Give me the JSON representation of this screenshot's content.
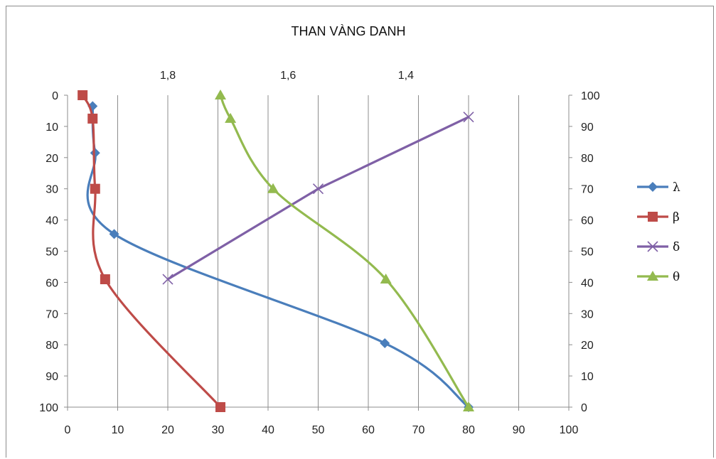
{
  "chart_data": {
    "type": "line",
    "title": "THAN VÀNG DANH",
    "x_axis": {
      "range": [
        0,
        100
      ],
      "ticks": [
        "0",
        "10",
        "20",
        "30",
        "40",
        "50",
        "60",
        "70",
        "80",
        "90",
        "100"
      ]
    },
    "y_left_axis": {
      "range": [
        0,
        100
      ],
      "reversed": true,
      "ticks": [
        "0",
        "10",
        "20",
        "30",
        "40",
        "50",
        "60",
        "70",
        "80",
        "90",
        "100"
      ]
    },
    "y_right_axis": {
      "range": [
        0,
        100
      ],
      "ticks": [
        "0",
        "10",
        "20",
        "30",
        "40",
        "50",
        "60",
        "70",
        "80",
        "90",
        "100"
      ]
    },
    "x_top_axis": {
      "labels": [
        {
          "text": "1,8",
          "at_x": 20
        },
        {
          "text": "1,6",
          "at_x": 44
        },
        {
          "text": "1,4",
          "at_x": 67.5
        }
      ]
    },
    "grid": "vertical",
    "legend_position": "right",
    "series": [
      {
        "name": "λ",
        "color": "#4a7ebb",
        "marker": "diamond",
        "axis": "left-reversed",
        "points": [
          [
            5,
            3.5
          ],
          [
            5.5,
            18.5
          ],
          [
            9.3,
            44.5
          ],
          [
            63.3,
            79.5
          ],
          [
            80,
            100
          ]
        ]
      },
      {
        "name": "β",
        "color": "#be4b48",
        "marker": "square",
        "axis": "left-reversed",
        "points": [
          [
            3,
            0
          ],
          [
            5,
            7.5
          ],
          [
            5.5,
            30
          ],
          [
            7.5,
            59
          ],
          [
            30.5,
            100
          ]
        ]
      },
      {
        "name": "δ",
        "color": "#7f60a6",
        "marker": "x",
        "axis": "right",
        "points": [
          [
            20,
            41
          ],
          [
            50,
            70
          ],
          [
            80,
            93
          ]
        ]
      },
      {
        "name": "θ",
        "color": "#93ba4f",
        "marker": "triangle",
        "axis": "right",
        "points": [
          [
            30.5,
            100
          ],
          [
            32.5,
            92.5
          ],
          [
            41,
            70
          ],
          [
            63.5,
            41
          ],
          [
            80,
            0
          ]
        ]
      }
    ]
  }
}
